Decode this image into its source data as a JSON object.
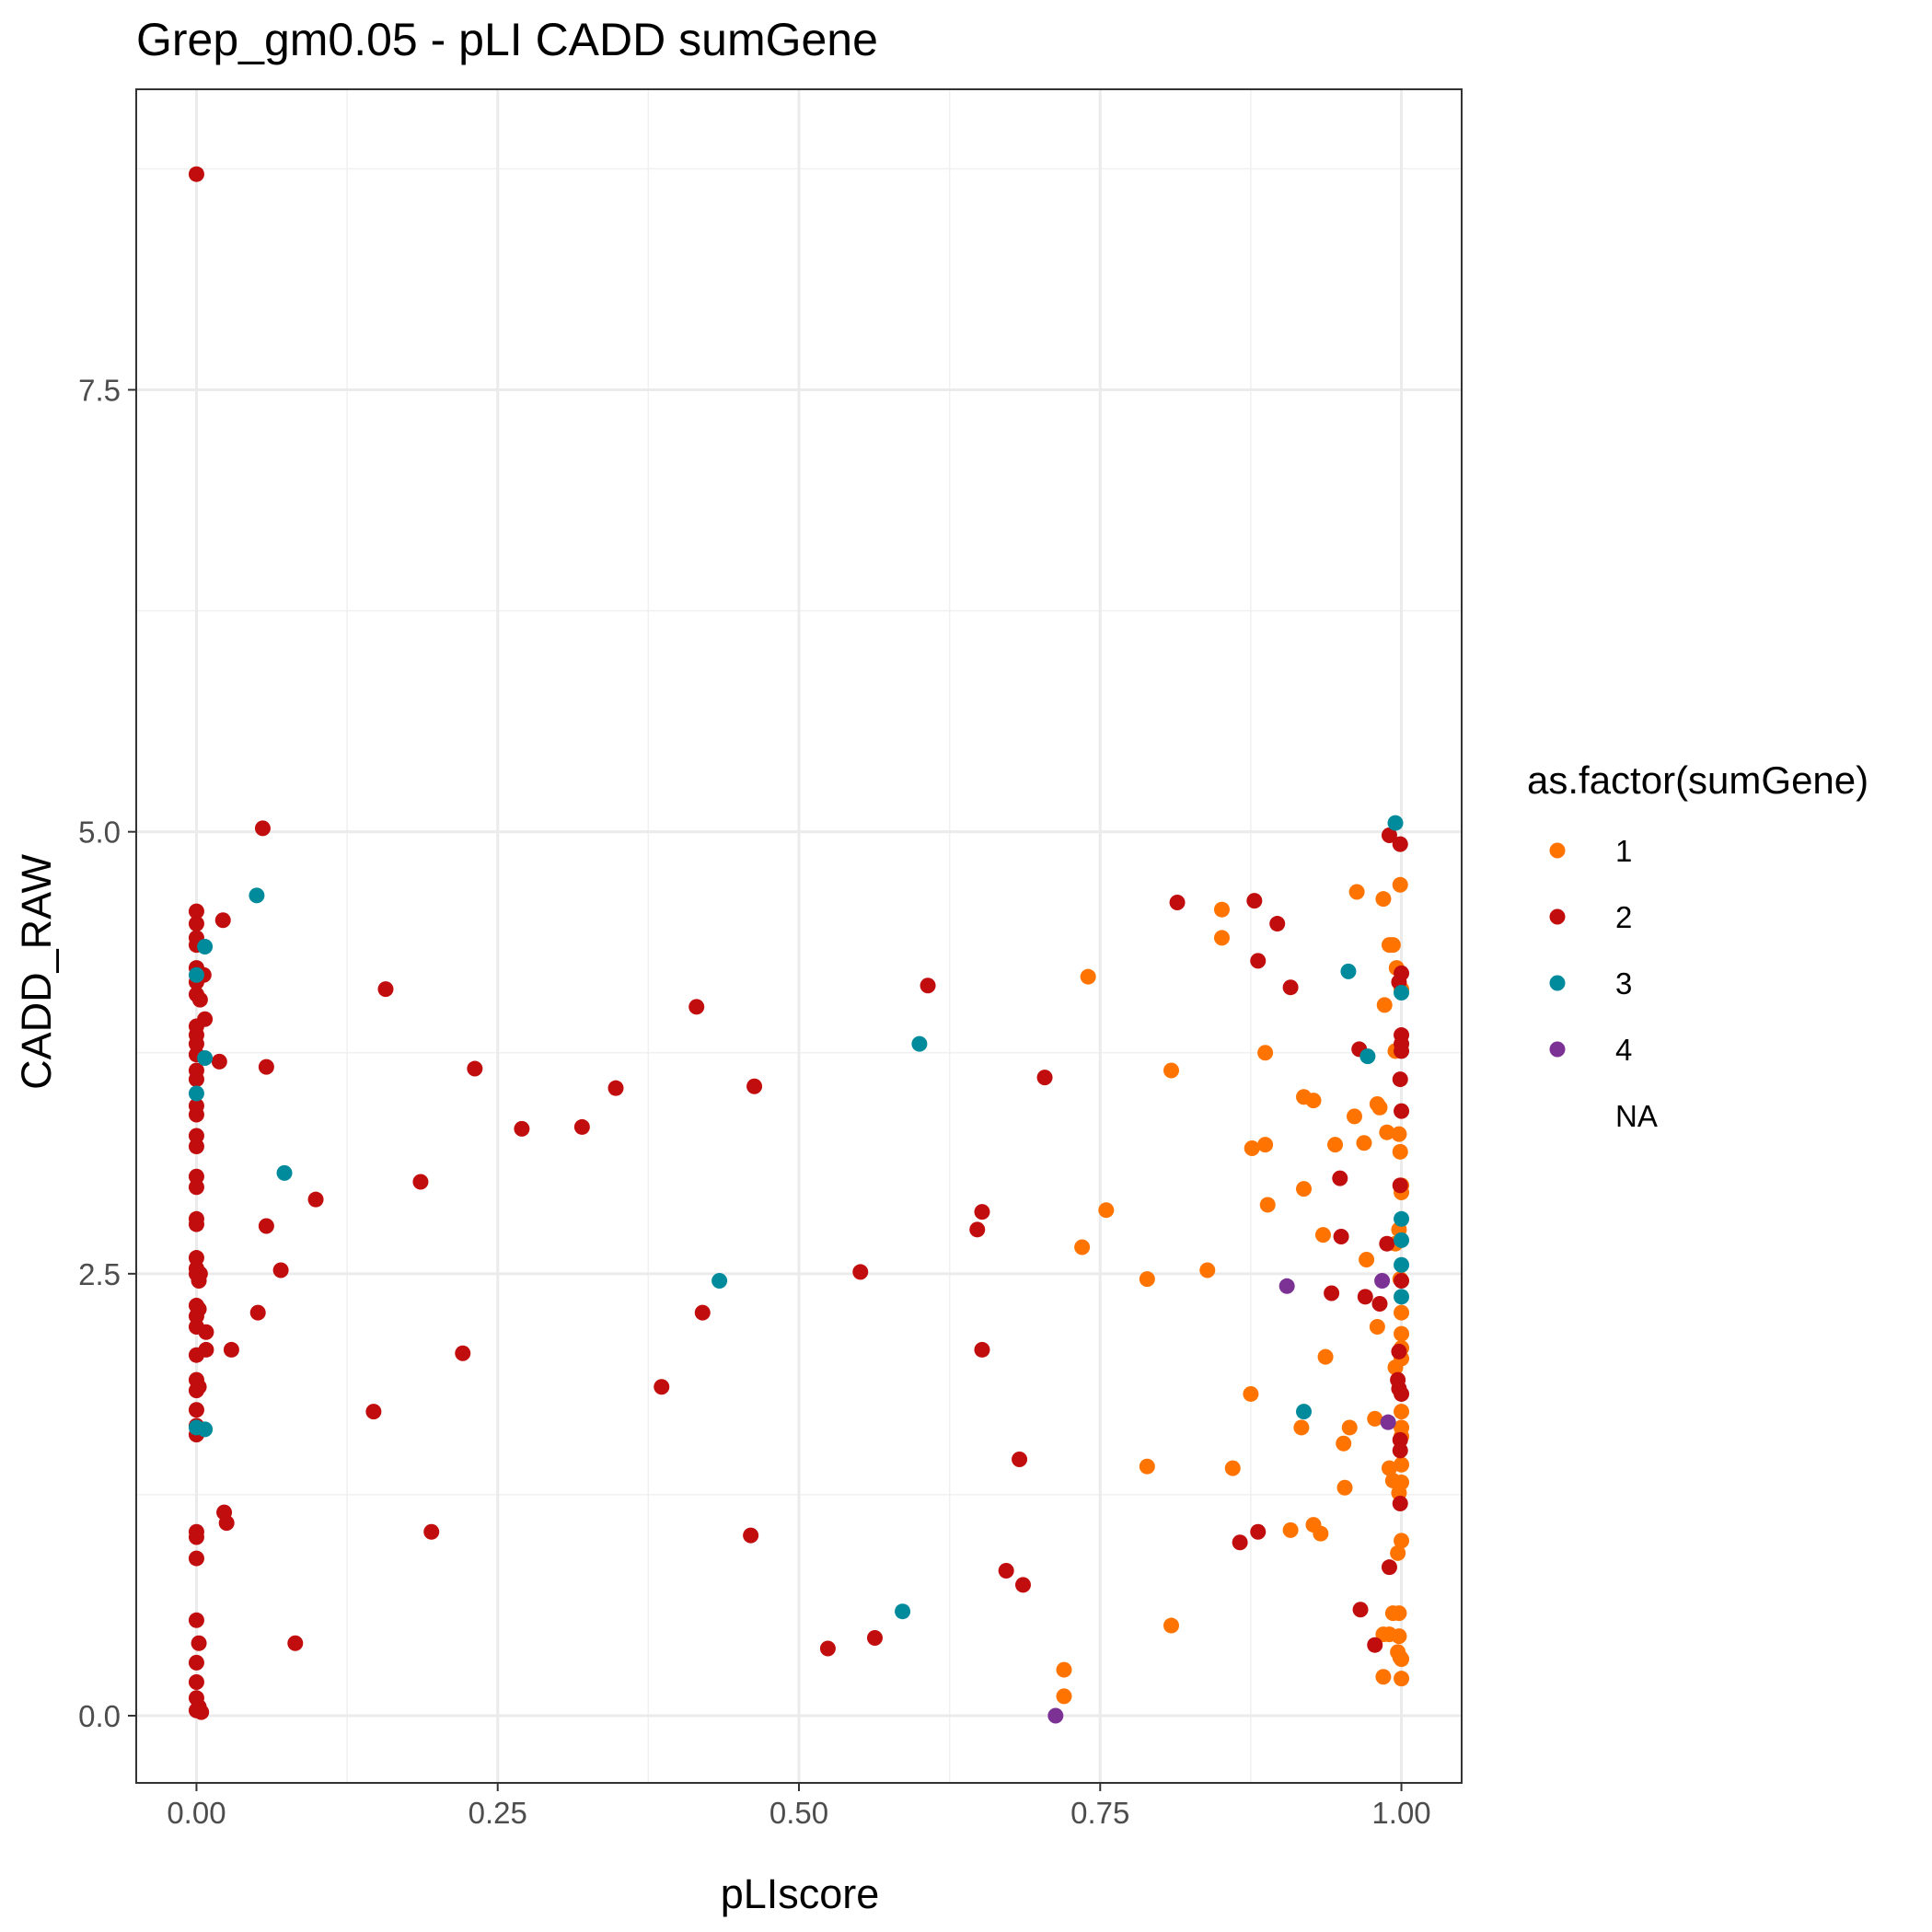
{
  "chart_data": {
    "type": "scatter",
    "title": "Grep_gm0.05 - pLI CADD sumGene",
    "xlabel": "pLIscore",
    "ylabel": "CADD_RAW",
    "xlim": [
      -0.05,
      1.05
    ],
    "ylim": [
      -0.38,
      9.2
    ],
    "x_ticks": [
      0.0,
      0.25,
      0.5,
      0.75,
      1.0
    ],
    "x_tick_labels": [
      "0.00",
      "0.25",
      "0.50",
      "0.75",
      "1.00"
    ],
    "y_ticks": [
      0.0,
      2.5,
      5.0,
      7.5
    ],
    "y_tick_labels": [
      "0.0",
      "2.5",
      "5.0",
      "7.5"
    ],
    "grid": true,
    "legend": {
      "title": "as.factor(sumGene)",
      "position": "right",
      "entries": [
        {
          "label": "1",
          "color": "#FF7400"
        },
        {
          "label": "2",
          "color": "#C10D0D"
        },
        {
          "label": "3",
          "color": "#008B9D"
        },
        {
          "label": "4",
          "color": "#7B3294"
        },
        {
          "label": "NA",
          "color": ""
        }
      ]
    },
    "series": [
      {
        "name": "1",
        "color": "#FF7400",
        "points": [
          [
            0.74,
            4.18
          ],
          [
            0.809,
            3.65
          ],
          [
            0.755,
            2.86
          ],
          [
            0.735,
            2.65
          ],
          [
            0.789,
            2.47
          ],
          [
            0.839,
            2.52
          ],
          [
            0.851,
            4.56
          ],
          [
            0.851,
            4.4
          ],
          [
            0.887,
            3.75
          ],
          [
            0.876,
            3.21
          ],
          [
            0.887,
            3.23
          ],
          [
            0.889,
            2.89
          ],
          [
            0.875,
            1.82
          ],
          [
            0.789,
            1.41
          ],
          [
            0.86,
            1.4
          ],
          [
            0.809,
            0.51
          ],
          [
            0.72,
            0.26
          ],
          [
            0.72,
            0.11
          ],
          [
            0.919,
            3.5
          ],
          [
            0.927,
            3.48
          ],
          [
            0.945,
            3.23
          ],
          [
            0.961,
            3.39
          ],
          [
            0.969,
            3.24
          ],
          [
            0.98,
            3.46
          ],
          [
            0.982,
            3.44
          ],
          [
            0.919,
            2.98
          ],
          [
            0.935,
            2.72
          ],
          [
            0.971,
            2.58
          ],
          [
            0.937,
            2.03
          ],
          [
            0.98,
            2.2
          ],
          [
            0.978,
            1.68
          ],
          [
            0.917,
            1.63
          ],
          [
            0.957,
            1.63
          ],
          [
            0.952,
            1.54
          ],
          [
            0.953,
            1.29
          ],
          [
            0.908,
            1.05
          ],
          [
            0.927,
            1.08
          ],
          [
            0.933,
            1.03
          ],
          [
            0.963,
            4.66
          ],
          [
            0.985,
            4.62
          ],
          [
            0.99,
            4.36
          ],
          [
            0.993,
            4.36
          ],
          [
            0.996,
            4.23
          ],
          [
            0.999,
            4.7
          ],
          [
            1.0,
            4.11
          ],
          [
            0.986,
            4.02
          ],
          [
            0.995,
            3.76
          ],
          [
            0.988,
            3.3
          ],
          [
            0.998,
            3.29
          ],
          [
            0.999,
            3.19
          ],
          [
            1.0,
            3.0
          ],
          [
            1.0,
            2.96
          ],
          [
            0.998,
            2.75
          ],
          [
            0.995,
            2.67
          ],
          [
            0.999,
            2.47
          ],
          [
            1.0,
            2.28
          ],
          [
            1.0,
            2.16
          ],
          [
            1.0,
            2.08
          ],
          [
            1.0,
            2.02
          ],
          [
            0.995,
            1.97
          ],
          [
            1.0,
            1.72
          ],
          [
            1.0,
            1.63
          ],
          [
            1.0,
            1.58
          ],
          [
            0.99,
            1.4
          ],
          [
            1.0,
            1.42
          ],
          [
            0.993,
            1.33
          ],
          [
            1.0,
            1.32
          ],
          [
            0.998,
            1.26
          ],
          [
            1.0,
            0.99
          ],
          [
            0.997,
            0.92
          ],
          [
            0.993,
            0.58
          ],
          [
            0.998,
            0.58
          ],
          [
            0.99,
            0.46
          ],
          [
            0.998,
            0.45
          ],
          [
            0.985,
            0.46
          ],
          [
            0.997,
            0.36
          ],
          [
            1.0,
            0.32
          ],
          [
            0.985,
            0.22
          ],
          [
            1.0,
            0.21
          ],
          [
            0.999,
            0.33
          ]
        ]
      },
      {
        "name": "2",
        "color": "#C10D0D",
        "points": [
          [
            0.0,
            8.72
          ],
          [
            0.055,
            5.02
          ],
          [
            0.0,
            4.55
          ],
          [
            0.0,
            4.48
          ],
          [
            0.022,
            4.5
          ],
          [
            0.0,
            4.4
          ],
          [
            0.0,
            4.36
          ],
          [
            0.0,
            4.23
          ],
          [
            0.006,
            4.19
          ],
          [
            0.0,
            4.15
          ],
          [
            0.0,
            4.08
          ],
          [
            0.003,
            4.05
          ],
          [
            0.007,
            3.94
          ],
          [
            0.0,
            3.9
          ],
          [
            0.0,
            3.85
          ],
          [
            0.0,
            3.8
          ],
          [
            0.0,
            3.74
          ],
          [
            0.019,
            3.7
          ],
          [
            0.0,
            3.65
          ],
          [
            0.0,
            3.6
          ],
          [
            0.058,
            3.67
          ],
          [
            0.0,
            3.45
          ],
          [
            0.0,
            3.4
          ],
          [
            0.0,
            3.28
          ],
          [
            0.0,
            3.22
          ],
          [
            0.0,
            3.05
          ],
          [
            0.0,
            2.99
          ],
          [
            0.0,
            2.81
          ],
          [
            0.0,
            2.78
          ],
          [
            0.058,
            2.77
          ],
          [
            0.0,
            2.59
          ],
          [
            0.0,
            2.53
          ],
          [
            0.0,
            2.5
          ],
          [
            0.003,
            2.5
          ],
          [
            0.07,
            2.52
          ],
          [
            0.002,
            2.46
          ],
          [
            0.0,
            2.32
          ],
          [
            0.002,
            2.3
          ],
          [
            0.0,
            2.26
          ],
          [
            0.051,
            2.28
          ],
          [
            0.0,
            2.2
          ],
          [
            0.008,
            2.17
          ],
          [
            0.008,
            2.07
          ],
          [
            0.029,
            2.07
          ],
          [
            0.0,
            2.04
          ],
          [
            0.0,
            1.9
          ],
          [
            0.0,
            1.84
          ],
          [
            0.002,
            1.86
          ],
          [
            0.0,
            1.73
          ],
          [
            0.0,
            1.64
          ],
          [
            0.0,
            1.59
          ],
          [
            0.023,
            1.15
          ],
          [
            0.025,
            1.09
          ],
          [
            0.0,
            1.04
          ],
          [
            0.0,
            1.01
          ],
          [
            0.0,
            0.89
          ],
          [
            0.0,
            0.54
          ],
          [
            0.002,
            0.41
          ],
          [
            0.0,
            0.3
          ],
          [
            0.0,
            0.19
          ],
          [
            0.0,
            0.1
          ],
          [
            0.002,
            0.05
          ],
          [
            0.0,
            0.03
          ],
          [
            0.004,
            0.02
          ],
          [
            0.082,
            0.41
          ],
          [
            0.099,
            2.92
          ],
          [
            0.157,
            4.11
          ],
          [
            0.147,
            1.72
          ],
          [
            0.186,
            3.02
          ],
          [
            0.195,
            1.04
          ],
          [
            0.221,
            2.05
          ],
          [
            0.231,
            3.66
          ],
          [
            0.27,
            3.32
          ],
          [
            0.32,
            3.33
          ],
          [
            0.348,
            3.55
          ],
          [
            0.386,
            1.86
          ],
          [
            0.415,
            4.01
          ],
          [
            0.42,
            2.28
          ],
          [
            0.46,
            1.02
          ],
          [
            0.463,
            3.56
          ],
          [
            0.524,
            0.38
          ],
          [
            0.551,
            2.51
          ],
          [
            0.563,
            0.44
          ],
          [
            0.607,
            4.13
          ],
          [
            0.648,
            2.75
          ],
          [
            0.652,
            2.85
          ],
          [
            0.652,
            2.07
          ],
          [
            0.672,
            0.82
          ],
          [
            0.683,
            1.45
          ],
          [
            0.686,
            0.74
          ],
          [
            0.704,
            3.61
          ],
          [
            0.814,
            4.6
          ],
          [
            0.878,
            4.61
          ],
          [
            0.881,
            4.27
          ],
          [
            0.897,
            4.48
          ],
          [
            0.908,
            4.12
          ],
          [
            0.866,
            0.98
          ],
          [
            0.881,
            1.04
          ],
          [
            0.942,
            2.39
          ],
          [
            0.949,
            3.04
          ],
          [
            0.95,
            2.71
          ],
          [
            0.965,
            3.77
          ],
          [
            0.97,
            2.37
          ],
          [
            0.982,
            2.33
          ],
          [
            0.988,
            2.67
          ],
          [
            0.99,
            4.98
          ],
          [
            0.999,
            4.93
          ],
          [
            1.0,
            4.2
          ],
          [
            0.998,
            4.15
          ],
          [
            1.0,
            3.85
          ],
          [
            1.0,
            3.8
          ],
          [
            1.0,
            3.76
          ],
          [
            0.999,
            3.6
          ],
          [
            1.0,
            3.42
          ],
          [
            0.999,
            3.0
          ],
          [
            1.0,
            2.46
          ],
          [
            0.998,
            2.06
          ],
          [
            0.997,
            1.9
          ],
          [
            0.998,
            1.85
          ],
          [
            1.0,
            1.82
          ],
          [
            0.999,
            1.56
          ],
          [
            0.999,
            1.5
          ],
          [
            0.999,
            1.2
          ],
          [
            0.99,
            0.84
          ],
          [
            0.966,
            0.6
          ],
          [
            0.978,
            0.4
          ]
        ]
      },
      {
        "name": "3",
        "color": "#008B9D",
        "points": [
          [
            0.0,
            4.19
          ],
          [
            0.007,
            4.35
          ],
          [
            0.05,
            4.64
          ],
          [
            0.007,
            3.72
          ],
          [
            0.0,
            3.52
          ],
          [
            0.073,
            3.07
          ],
          [
            0.0,
            1.63
          ],
          [
            0.007,
            1.62
          ],
          [
            0.434,
            2.46
          ],
          [
            0.6,
            3.8
          ],
          [
            0.586,
            0.59
          ],
          [
            0.919,
            1.72
          ],
          [
            0.956,
            4.21
          ],
          [
            0.972,
            3.73
          ],
          [
            0.995,
            5.05
          ],
          [
            1.0,
            4.09
          ],
          [
            1.0,
            2.81
          ],
          [
            1.0,
            2.69
          ],
          [
            1.0,
            2.55
          ],
          [
            1.0,
            2.37
          ]
        ]
      },
      {
        "name": "4",
        "color": "#7B3294",
        "points": [
          [
            0.713,
            0.0
          ],
          [
            0.905,
            2.43
          ],
          [
            0.984,
            2.46
          ],
          [
            0.989,
            1.66
          ]
        ]
      }
    ]
  }
}
